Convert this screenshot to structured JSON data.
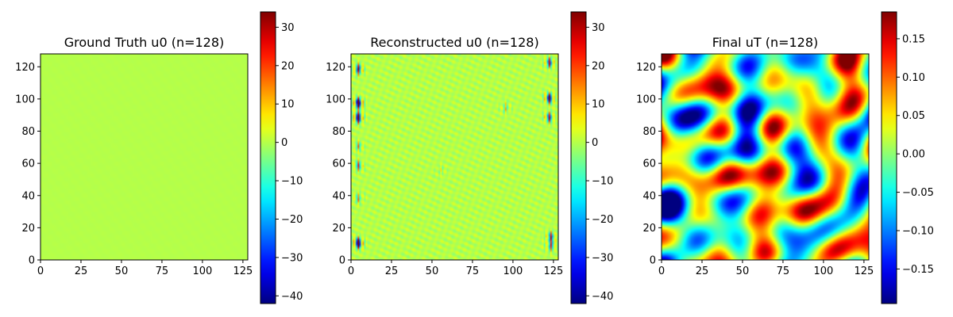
{
  "chart_data": [
    {
      "type": "heatmap",
      "title": "Ground Truth u0 (n=128)",
      "xlabel": "",
      "ylabel": "",
      "xlim": [
        0,
        128
      ],
      "ylim": [
        0,
        128
      ],
      "x_ticks": [
        "0",
        "25",
        "50",
        "75",
        "100",
        "125"
      ],
      "y_ticks": [
        "0",
        "20",
        "40",
        "60",
        "80",
        "100",
        "120"
      ],
      "colormap": "jet",
      "colorbar_range": [
        -42,
        34
      ],
      "colorbar_ticks": [
        "30",
        "20",
        "10",
        "0",
        "−10",
        "−20",
        "−30",
        "−40"
      ],
      "field": "near-uniform value approximately 0 across the whole grid"
    },
    {
      "type": "heatmap",
      "title": "Reconstructed u0 (n=128)",
      "xlabel": "",
      "ylabel": "",
      "xlim": [
        0,
        128
      ],
      "ylim": [
        0,
        128
      ],
      "x_ticks": [
        "0",
        "25",
        "50",
        "75",
        "100",
        "125"
      ],
      "y_ticks": [
        "0",
        "20",
        "40",
        "60",
        "80",
        "100",
        "120"
      ],
      "colormap": "jet",
      "colorbar_range": [
        -42,
        34
      ],
      "colorbar_ticks": [
        "30",
        "20",
        "10",
        "0",
        "−10",
        "−20",
        "−30",
        "−40"
      ],
      "field": "mostly ~0 with small ripples; strong oscillating artifacts near left edge (x≈0-10) and right edge (x≈118-128)"
    },
    {
      "type": "heatmap",
      "title": "Final uT (n=128)",
      "xlabel": "",
      "ylabel": "",
      "xlim": [
        0,
        128
      ],
      "ylim": [
        0,
        128
      ],
      "x_ticks": [
        "0",
        "25",
        "50",
        "75",
        "100",
        "125"
      ],
      "y_ticks": [
        "0",
        "20",
        "40",
        "60",
        "80",
        "100",
        "120"
      ],
      "colormap": "jet",
      "colorbar_range": [
        -0.195,
        0.185
      ],
      "colorbar_ticks": [
        "0.15",
        "0.10",
        "0.05",
        "0.00",
        "−0.05",
        "−0.10",
        "−0.15"
      ],
      "field": "smooth random blob field spanning about −0.19 to 0.18"
    }
  ]
}
